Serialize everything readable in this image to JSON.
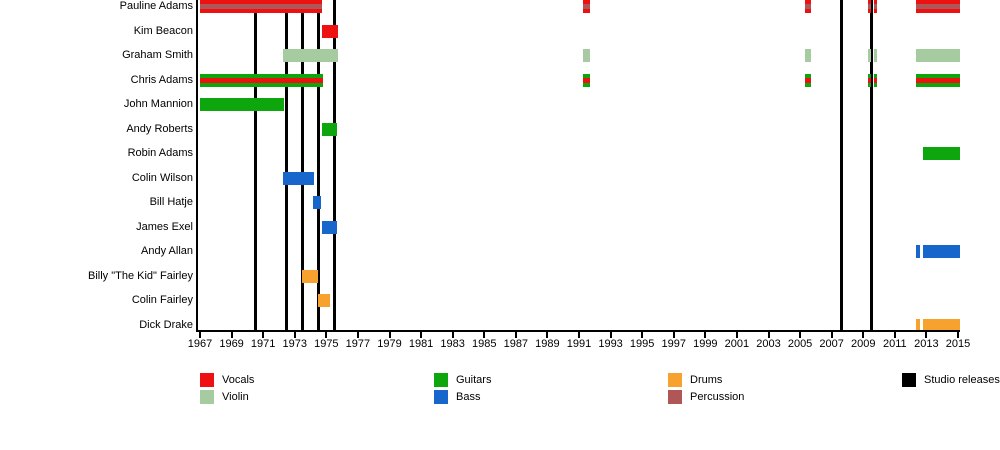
{
  "chart_data": {
    "type": "timeline",
    "description": "Band members timeline with instrument roles and studio release markers",
    "x_axis": {
      "min": 1967,
      "max": 2015,
      "tick_interval": 2,
      "tick_labels": [
        "1967",
        "1969",
        "1971",
        "1973",
        "1975",
        "1977",
        "1979",
        "1981",
        "1983",
        "1985",
        "1987",
        "1989",
        "1991",
        "1993",
        "1995",
        "1997",
        "1999",
        "2001",
        "2003",
        "2005",
        "2007",
        "2009",
        "2011",
        "2013",
        "2015"
      ]
    },
    "colors": {
      "vocals": "#ee1111",
      "violin": "#a6cba1",
      "guitars": "#0da60d",
      "bass": "#1666cb",
      "drums": "#f7a22e",
      "percussion": "#b05656",
      "studio_release": "#000000"
    },
    "members": [
      {
        "name": "Pauline Adams",
        "roles": [
          "Vocals",
          "Percussion"
        ],
        "color": "vocals",
        "stripe": "percussion",
        "segments": [
          [
            1967.0,
            1974.75
          ],
          [
            1991.25,
            1991.7
          ],
          [
            2005.3,
            2005.7
          ],
          [
            2009.3,
            2009.5
          ],
          [
            2009.65,
            2009.9
          ],
          [
            2012.35,
            2015.1
          ]
        ]
      },
      {
        "name": "Kim Beacon",
        "roles": [
          "Vocals"
        ],
        "color": "vocals",
        "segments": [
          [
            1974.75,
            1975.75
          ]
        ]
      },
      {
        "name": "Graham Smith",
        "roles": [
          "Violin"
        ],
        "color": "violin",
        "segments": [
          [
            1972.25,
            1975.75
          ],
          [
            1991.25,
            1991.7
          ],
          [
            2005.3,
            2005.7
          ],
          [
            2009.3,
            2009.5
          ],
          [
            2009.65,
            2009.9
          ],
          [
            2012.35,
            2015.1
          ]
        ]
      },
      {
        "name": "Chris Adams",
        "roles": [
          "Guitars",
          "Vocals"
        ],
        "color": "guitars",
        "stripe": "vocals",
        "segments": [
          [
            1967.0,
            1974.8
          ],
          [
            1991.25,
            1991.7
          ],
          [
            2005.3,
            2005.7
          ],
          [
            2009.3,
            2009.5
          ],
          [
            2009.65,
            2009.9
          ],
          [
            2012.35,
            2015.1
          ]
        ]
      },
      {
        "name": "John Mannion",
        "roles": [
          "Guitars"
        ],
        "color": "guitars",
        "segments": [
          [
            1967.0,
            1972.3
          ]
        ]
      },
      {
        "name": "Andy Roberts",
        "roles": [
          "Guitars"
        ],
        "color": "guitars",
        "segments": [
          [
            1974.75,
            1975.7
          ]
        ]
      },
      {
        "name": "Robin Adams",
        "roles": [
          "Guitars"
        ],
        "color": "guitars",
        "segments": [
          [
            2012.8,
            2015.1
          ]
        ]
      },
      {
        "name": "Colin Wilson",
        "roles": [
          "Bass"
        ],
        "color": "bass",
        "segments": [
          [
            1972.25,
            1974.2
          ]
        ]
      },
      {
        "name": "Bill Hatje",
        "roles": [
          "Bass"
        ],
        "color": "bass",
        "segments": [
          [
            1974.15,
            1974.65
          ]
        ]
      },
      {
        "name": "James Exel",
        "roles": [
          "Bass"
        ],
        "color": "bass",
        "segments": [
          [
            1974.75,
            1975.7
          ]
        ]
      },
      {
        "name": "Andy Allan",
        "roles": [
          "Bass"
        ],
        "color": "bass",
        "segments": [
          [
            2012.35,
            2012.6
          ],
          [
            2012.8,
            2015.1
          ]
        ]
      },
      {
        "name": "Billy \"The Kid\" Fairley",
        "roles": [
          "Drums"
        ],
        "color": "drums",
        "segments": [
          [
            1973.45,
            1974.5
          ]
        ]
      },
      {
        "name": "Colin Fairley",
        "roles": [
          "Drums"
        ],
        "color": "drums",
        "segments": [
          [
            1974.5,
            1975.25
          ]
        ]
      },
      {
        "name": "Dick Drake",
        "roles": [
          "Drums"
        ],
        "color": "drums",
        "segments": [
          [
            2012.35,
            2012.6
          ],
          [
            2012.8,
            2015.1
          ]
        ]
      }
    ],
    "studio_releases": [
      1970.5,
      1972.5,
      1973.5,
      1974.5,
      1975.5,
      2007.65,
      2009.55
    ],
    "legend": {
      "position": "bottom",
      "columns": [
        [
          {
            "label": "Vocals",
            "color": "vocals"
          },
          {
            "label": "Violin",
            "color": "violin"
          }
        ],
        [
          {
            "label": "Guitars",
            "color": "guitars"
          },
          {
            "label": "Bass",
            "color": "bass"
          }
        ],
        [
          {
            "label": "Drums",
            "color": "drums"
          },
          {
            "label": "Percussion",
            "color": "percussion"
          }
        ],
        [
          {
            "label": "Studio releases",
            "color": "studio_release"
          }
        ]
      ]
    }
  }
}
